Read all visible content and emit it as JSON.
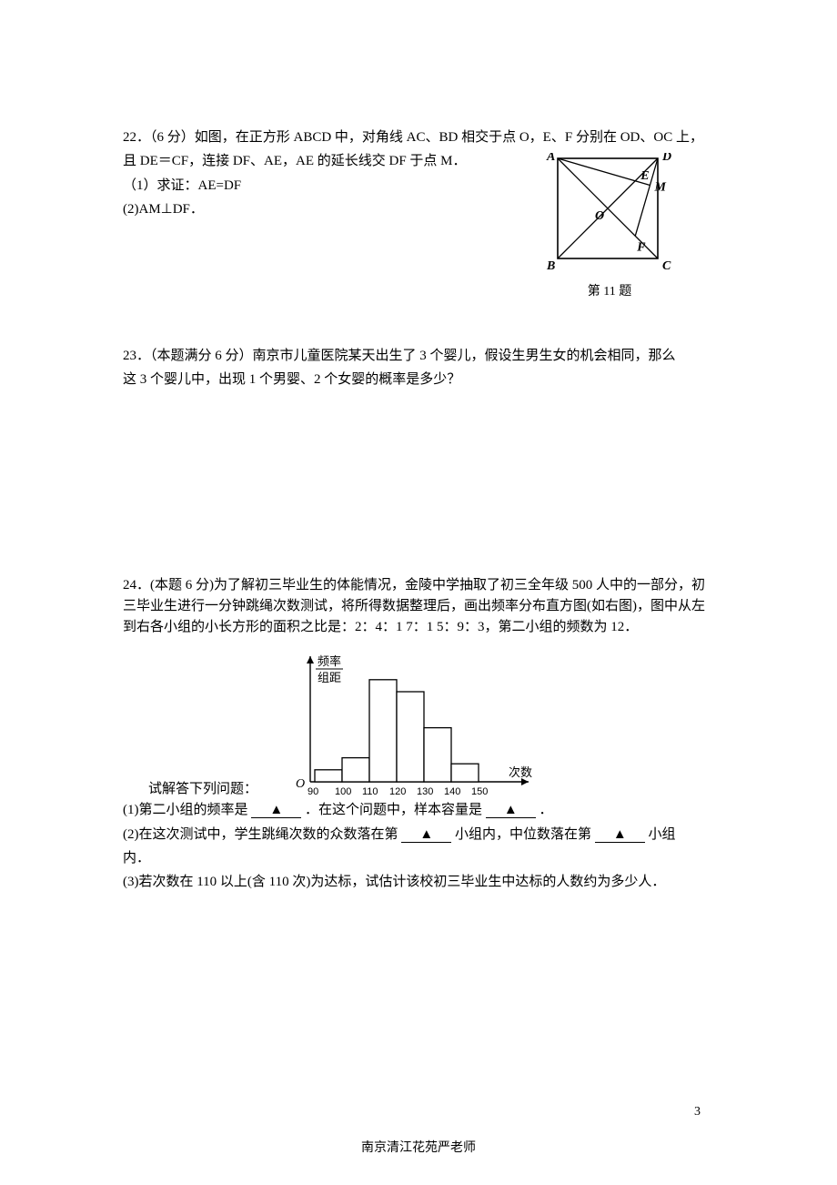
{
  "q22": {
    "line1": "22．（6 分）如图，在正方形 ABCD 中，对角线 AC、BD 相交于点 O，E、F 分别在 OD、OC 上，",
    "line2": "且 DE＝CF，连接 DF、AE，AE 的延长线交 DF 于点 M．",
    "line3": "（1）求证：AE=DF",
    "line4": " (2)AM⊥DF．",
    "caption": "第 11 题",
    "diagram": {
      "box_color": "#000000",
      "bg_color": "#ffffff",
      "A": "A",
      "B": "B",
      "C": "C",
      "D": "D",
      "E": "E",
      "F": "F",
      "M": "M",
      "O": "O"
    }
  },
  "q23": {
    "line1": "23．（本题满分 6 分）南京市儿童医院某天出生了 3 个婴儿，假设生男生女的机会相同，那么",
    "line2": "这 3 个婴儿中，出现 1 个男婴、2 个女婴的概率是多少？"
  },
  "q24": {
    "p1": "24．(本题 6 分)为了解初三毕业生的体能情况，金陵中学抽取了初三全年级 500 人中的一部分，初三毕业生进行一分钟跳绳次数测试，将所得数据整理后，画出频率分布直方图(如右图)，图中从左到右各小组的小长方形的面积之比是：2：4：1 7：1 5：9：3，第二小组的频数为 12．",
    "chart_lead": "试解答下列问题：",
    "l1a": "(1)第二小组的频率是",
    "l1b": "．在这个问题中，样本容量是",
    "l1c": "．",
    "l2a": "(2)在这次测试中，学生跳绳次数的众数落在第",
    "l2b": "小组内，中位数落在第",
    "l2c": "小组",
    "l2d": "内．",
    "l3": "(3)若次数在 110 以上(含 110 次)为达标，试估计该校初三毕业生中达标的人数约为多少人．",
    "blank_marker": "▲",
    "histogram": {
      "ylabel_top": "频率",
      "ylabel_bot": "组距",
      "xlabel": "次数",
      "origin": "O",
      "ticks": [
        "90",
        "100",
        "110",
        "120",
        "130",
        "140",
        "150"
      ],
      "bars": [
        2,
        4,
        17,
        15,
        9,
        3
      ],
      "bar_color": "#ffffff",
      "line_color": "#000000",
      "scale_per_unit": 6.6
    }
  },
  "footer": "南京清江花苑严老师",
  "page_number": "3"
}
